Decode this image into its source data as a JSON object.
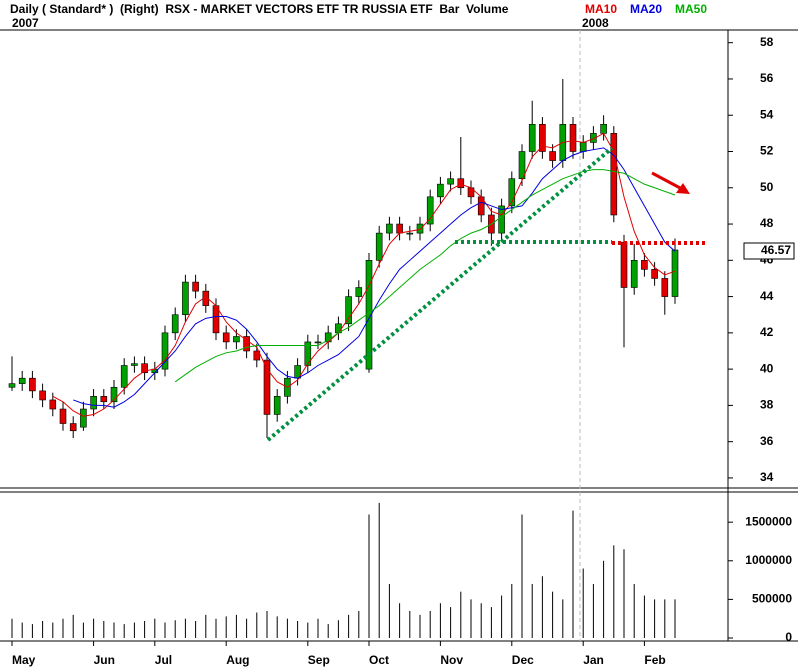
{
  "chart_data": {
    "type": "candlestick",
    "header": "Daily ( Standard* )  (Right)  RSX - MARKET VECTORS ETF TR RUSSIA ETF  Bar  Volume",
    "years": [
      "2007",
      "2008"
    ],
    "last_price": 46.57,
    "up_color": "#00a000",
    "down_color": "#e00000",
    "categories": [
      "May",
      null,
      null,
      null,
      null,
      null,
      null,
      null,
      "Jun",
      null,
      null,
      null,
      null,
      null,
      "Jul",
      null,
      null,
      null,
      null,
      null,
      null,
      "Aug",
      null,
      null,
      null,
      null,
      null,
      null,
      null,
      "Sep",
      null,
      null,
      null,
      null,
      null,
      "Oct",
      null,
      null,
      null,
      null,
      null,
      null,
      "Nov",
      null,
      null,
      null,
      null,
      null,
      null,
      "Dec",
      null,
      null,
      null,
      null,
      null,
      null,
      "Jan",
      null,
      null,
      null,
      null,
      null,
      "Feb",
      null,
      null,
      null
    ],
    "open": [
      39.0,
      39.2,
      39.5,
      38.8,
      38.3,
      37.8,
      37.0,
      36.8,
      37.8,
      38.5,
      38.2,
      39.0,
      40.2,
      40.3,
      39.8,
      40.0,
      42.0,
      43.0,
      44.8,
      44.3,
      43.5,
      42.0,
      41.5,
      41.8,
      41.0,
      40.5,
      37.5,
      38.5,
      39.5,
      40.2,
      41.5,
      41.5,
      42.0,
      42.5,
      44.0,
      40.0,
      46.0,
      47.5,
      48.0,
      47.5,
      47.5,
      48.0,
      49.5,
      50.2,
      50.5,
      50.0,
      49.5,
      48.5,
      47.5,
      49.0,
      50.5,
      52.0,
      53.5,
      52.0,
      51.5,
      53.5,
      52.0,
      52.5,
      53.0,
      53.0,
      47.0,
      44.5,
      46.0,
      45.5,
      45.0,
      44.0
    ],
    "high": [
      40.7,
      39.9,
      39.9,
      39.2,
      38.7,
      38.2,
      37.4,
      38.2,
      38.9,
      38.9,
      39.4,
      40.6,
      40.7,
      40.7,
      40.4,
      42.4,
      43.4,
      45.2,
      45.2,
      44.7,
      43.9,
      42.4,
      42.2,
      42.2,
      41.4,
      40.9,
      38.9,
      39.9,
      40.6,
      41.9,
      41.9,
      42.4,
      42.9,
      44.4,
      44.9,
      46.4,
      47.9,
      48.4,
      48.4,
      47.9,
      48.4,
      49.9,
      50.6,
      50.9,
      52.8,
      50.4,
      49.9,
      48.9,
      49.4,
      50.9,
      52.4,
      54.8,
      53.9,
      52.4,
      56.0,
      53.9,
      52.9,
      53.4,
      54.0,
      53.4,
      47.4,
      46.9,
      46.4,
      45.9,
      45.4,
      47.2
    ],
    "low": [
      38.8,
      38.8,
      38.4,
      37.9,
      37.4,
      36.6,
      36.2,
      36.6,
      37.4,
      37.8,
      37.8,
      38.6,
      39.8,
      39.4,
      39.4,
      39.6,
      41.6,
      42.6,
      43.9,
      43.1,
      41.6,
      41.1,
      41.1,
      40.6,
      40.1,
      36.2,
      37.1,
      38.1,
      39.1,
      39.8,
      41.1,
      41.1,
      41.6,
      42.1,
      43.6,
      39.8,
      45.6,
      47.1,
      47.1,
      47.1,
      47.1,
      47.6,
      49.1,
      49.8,
      49.6,
      49.1,
      48.1,
      46.8,
      47.1,
      48.6,
      50.1,
      51.6,
      51.6,
      51.1,
      51.1,
      51.6,
      51.6,
      52.1,
      52.6,
      48.1,
      41.2,
      44.1,
      45.1,
      44.6,
      43.0,
      43.6
    ],
    "close": [
      39.2,
      39.5,
      38.8,
      38.3,
      37.8,
      37.0,
      36.6,
      37.8,
      38.5,
      38.2,
      39.0,
      40.2,
      40.3,
      39.8,
      40.0,
      42.0,
      43.0,
      44.8,
      44.3,
      43.5,
      42.0,
      41.5,
      41.8,
      41.0,
      40.5,
      37.5,
      38.5,
      39.5,
      40.2,
      41.5,
      41.5,
      42.0,
      42.5,
      44.0,
      44.5,
      46.0,
      47.5,
      48.0,
      47.5,
      47.5,
      48.0,
      49.5,
      50.2,
      50.5,
      50.0,
      49.5,
      48.5,
      47.5,
      49.0,
      50.5,
      52.0,
      53.5,
      52.0,
      51.5,
      53.5,
      52.0,
      52.5,
      53.0,
      53.5,
      48.5,
      44.5,
      46.0,
      45.5,
      45.0,
      44.0,
      46.57
    ],
    "series": [
      {
        "name": "MA10",
        "color": "#e00000",
        "values": [
          null,
          null,
          null,
          null,
          38.5,
          38.2,
          37.7,
          37.4,
          37.5,
          37.8,
          38.3,
          38.9,
          39.5,
          39.9,
          40.0,
          40.5,
          41.3,
          42.6,
          43.6,
          44.0,
          43.5,
          42.6,
          42.0,
          41.6,
          41.2,
          40.0,
          39.3,
          39.0,
          39.4,
          40.3,
          41.0,
          41.5,
          42.0,
          42.8,
          43.6,
          44.6,
          45.8,
          46.9,
          47.5,
          47.6,
          47.7,
          48.3,
          49.1,
          49.9,
          50.2,
          50.0,
          49.5,
          48.7,
          48.5,
          49.2,
          50.4,
          51.7,
          52.3,
          52.2,
          52.5,
          52.6,
          52.5,
          52.7,
          53.0,
          52.0,
          49.5,
          47.6,
          46.3,
          45.6,
          45.2,
          45.4
        ]
      },
      {
        "name": "MA20",
        "color": "#0000e0",
        "values": [
          null,
          null,
          null,
          null,
          null,
          null,
          38.3,
          38.1,
          38.0,
          38.0,
          37.9,
          38.2,
          38.6,
          39.2,
          39.8,
          40.4,
          41.0,
          41.8,
          42.5,
          42.8,
          42.9,
          42.9,
          42.7,
          42.2,
          41.5,
          40.7,
          40.0,
          39.6,
          39.5,
          39.8,
          40.2,
          40.5,
          40.8,
          41.3,
          41.8,
          42.8,
          43.8,
          44.7,
          45.5,
          46.0,
          46.5,
          47.0,
          47.5,
          48.0,
          48.5,
          48.9,
          49.2,
          49.0,
          48.8,
          48.9,
          49.0,
          49.7,
          50.5,
          51.0,
          51.5,
          51.8,
          52.0,
          52.1,
          52.2,
          51.8,
          51.0,
          50.0,
          49.0,
          48.0,
          47.0,
          46.5
        ]
      },
      {
        "name": "MA50",
        "color": "#00b000",
        "values": [
          null,
          null,
          null,
          null,
          null,
          null,
          null,
          null,
          null,
          null,
          null,
          null,
          null,
          null,
          null,
          null,
          39.3,
          39.7,
          40.1,
          40.4,
          40.7,
          40.9,
          41.0,
          41.2,
          41.3,
          41.3,
          41.3,
          41.3,
          41.3,
          41.3,
          41.3,
          41.6,
          42.0,
          42.3,
          42.7,
          43.1,
          43.5,
          44.0,
          44.5,
          45.0,
          45.5,
          45.9,
          46.3,
          46.8,
          47.2,
          47.5,
          47.7,
          48.0,
          48.4,
          48.8,
          49.2,
          49.6,
          49.9,
          50.2,
          50.5,
          50.7,
          50.9,
          51.0,
          51.0,
          50.9,
          50.8,
          50.5,
          50.2,
          50.0,
          49.8,
          49.6
        ]
      }
    ],
    "ylim": [
      33.5,
      58.7
    ],
    "yticks": [
      34,
      36,
      38,
      40,
      42,
      44,
      46,
      48,
      50,
      52,
      54,
      56,
      58
    ],
    "volume": {
      "values": [
        250000,
        200000,
        180000,
        220000,
        200000,
        250000,
        300000,
        200000,
        250000,
        220000,
        200000,
        180000,
        200000,
        220000,
        250000,
        200000,
        230000,
        250000,
        220000,
        300000,
        250000,
        280000,
        300000,
        250000,
        330000,
        350000,
        280000,
        250000,
        220000,
        200000,
        250000,
        180000,
        230000,
        300000,
        350000,
        1600000,
        1750000,
        700000,
        450000,
        350000,
        300000,
        350000,
        450000,
        400000,
        600000,
        500000,
        450000,
        400000,
        550000,
        700000,
        1600000,
        700000,
        800000,
        600000,
        500000,
        1650000,
        900000,
        700000,
        1000000,
        1200000,
        1150000,
        700000,
        550000,
        500000,
        500000,
        500000
      ],
      "ylim": [
        -39000,
        1891000
      ],
      "yticks": [
        0,
        500000,
        1000000,
        1500000
      ]
    }
  }
}
